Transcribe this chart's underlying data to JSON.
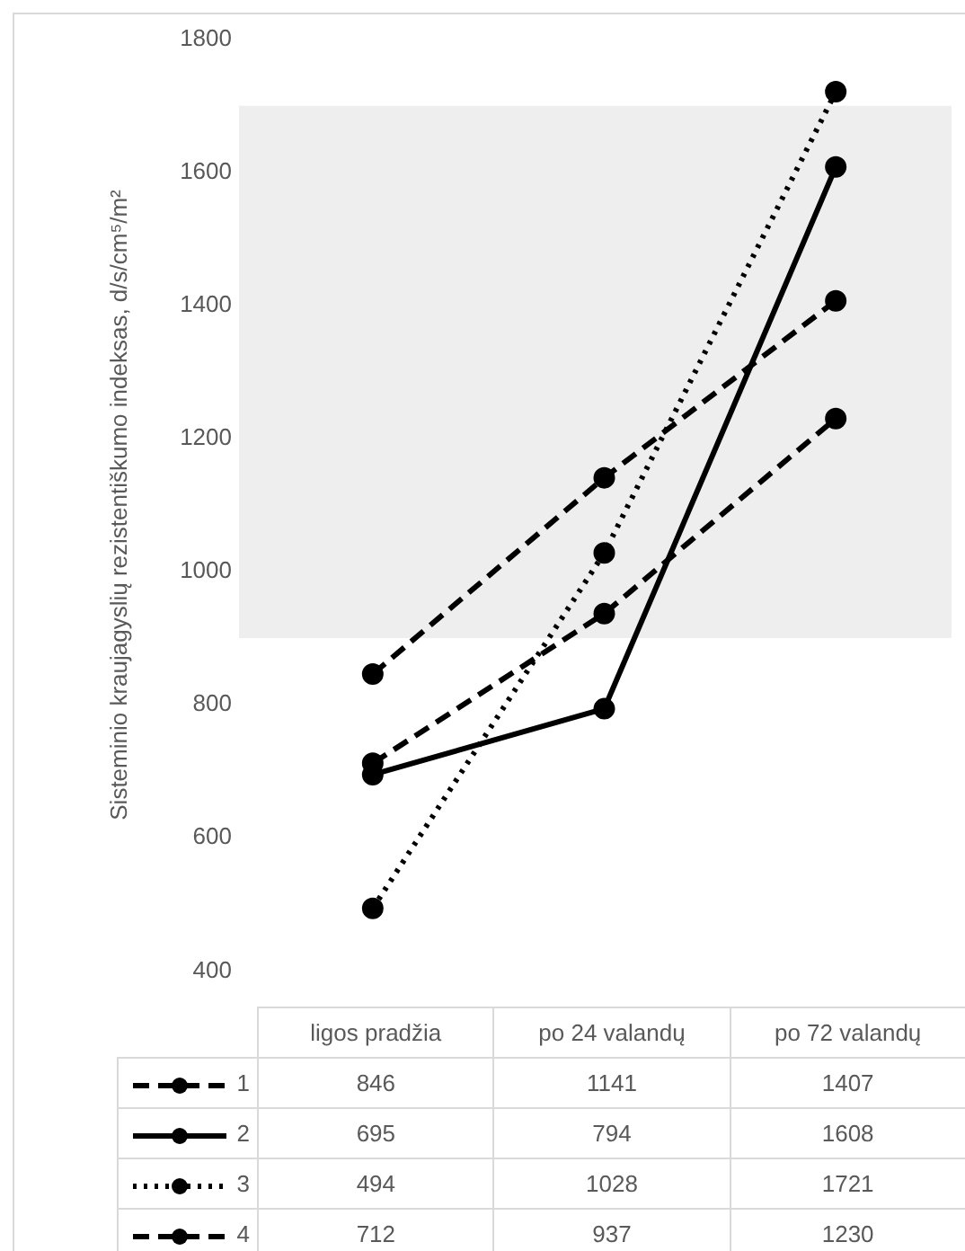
{
  "chart_data": {
    "type": "line",
    "ylabel": "Sisteminio kraujagyslių rezistentiškumo indeksas, d/s/cm⁵/m²",
    "categories": [
      "ligos pradžia",
      "po 24 valandų",
      "po 72 valandų"
    ],
    "series": [
      {
        "name": "1",
        "color": "#000000",
        "values": [
          846,
          1141,
          1407
        ],
        "line_style": "dashed"
      },
      {
        "name": "2",
        "color": "#000000",
        "values": [
          695,
          794,
          1608
        ],
        "line_style": "solid"
      },
      {
        "name": "3",
        "color": "#000000",
        "values": [
          494,
          1028,
          1721
        ],
        "line_style": "dotted"
      },
      {
        "name": "4",
        "color": "#000000",
        "values": [
          712,
          937,
          1230
        ],
        "line_style": "dashed"
      }
    ],
    "ylim": [
      400,
      1800
    ],
    "yticks": [
      400,
      600,
      800,
      1000,
      1200,
      1400,
      1600,
      1800
    ],
    "bands": [
      {
        "axis": "y",
        "from": 900,
        "to": 1700,
        "color": "#eeeeee"
      }
    ],
    "grid": false,
    "marker": "circle",
    "legend": "bottom",
    "data_labels": true
  }
}
